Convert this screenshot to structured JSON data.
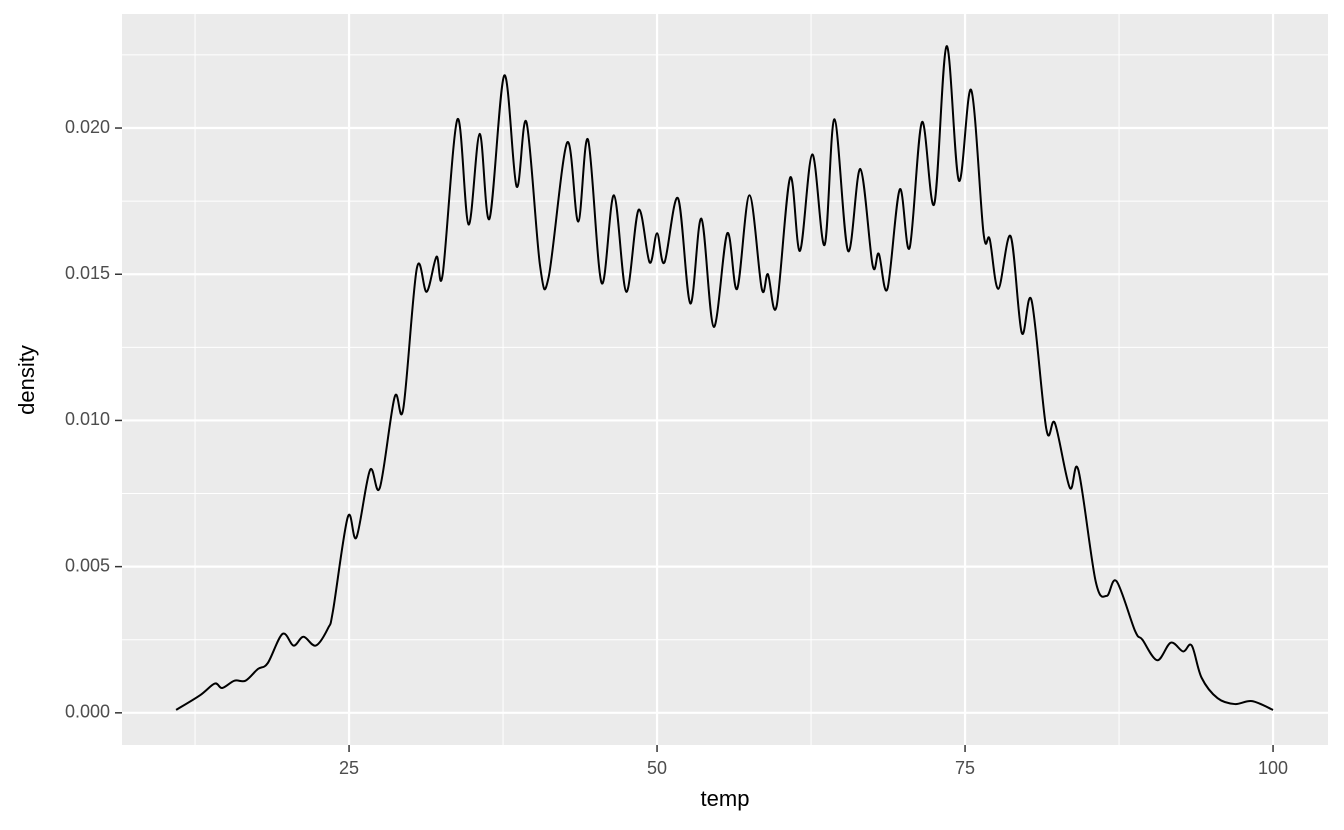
{
  "chart_data": {
    "type": "line",
    "x_label": "temp",
    "y_label": "density",
    "x": [
      10.96,
      12.9,
      14.1,
      14.7,
      15.7,
      16.6,
      17.6,
      18.4,
      19.6,
      20.5,
      21.3,
      22.3,
      23.3,
      23.7,
      24.9,
      25.6,
      26.7,
      27.5,
      28.7,
      29.4,
      30.5,
      31.3,
      32.1,
      32.6,
      33.8,
      34.7,
      35.6,
      36.4,
      37.6,
      38.6,
      39.4,
      40.5,
      41.2,
      42.7,
      43.6,
      44.4,
      45.5,
      46.5,
      47.5,
      48.5,
      49.4,
      50,
      50.6,
      51.7,
      52.7,
      53.6,
      54.6,
      55.7,
      56.5,
      57.5,
      58.5,
      59.0,
      59.7,
      60.8,
      61.6,
      62.6,
      63.6,
      64.4,
      65.5,
      66.5,
      67.5,
      68.0,
      68.7,
      69.7,
      70.5,
      71.5,
      72.5,
      73.5,
      74.5,
      75.5,
      76.5,
      77.0,
      77.7,
      78.7,
      79.6,
      80.4,
      81.6,
      82.3,
      83.5,
      84.2,
      85.6,
      86.5,
      87.3,
      88.8,
      89.4,
      90.6,
      91.7,
      92.7,
      93.4,
      94.2,
      95.5,
      96.9,
      98.3,
      100
    ],
    "series": [
      {
        "color": "#000000",
        "values": [
          0.0001,
          0.0006,
          0.001,
          0.00085,
          0.0011,
          0.0011,
          0.0015,
          0.0017,
          0.0027,
          0.0023,
          0.0026,
          0.0023,
          0.0029,
          0.0035,
          0.0067,
          0.006,
          0.0083,
          0.0077,
          0.0108,
          0.0104,
          0.0152,
          0.0144,
          0.0156,
          0.015,
          0.0203,
          0.0167,
          0.0198,
          0.0169,
          0.0218,
          0.018,
          0.0202,
          0.0153,
          0.0149,
          0.0195,
          0.0168,
          0.0196,
          0.0147,
          0.0177,
          0.0144,
          0.0172,
          0.0154,
          0.0164,
          0.0154,
          0.0176,
          0.014,
          0.0169,
          0.0132,
          0.0164,
          0.0145,
          0.0177,
          0.0145,
          0.015,
          0.0139,
          0.0183,
          0.0158,
          0.0191,
          0.016,
          0.0203,
          0.0158,
          0.0186,
          0.0153,
          0.0157,
          0.0145,
          0.0179,
          0.0159,
          0.0202,
          0.0174,
          0.0228,
          0.0182,
          0.0213,
          0.0164,
          0.0162,
          0.0145,
          0.0163,
          0.013,
          0.0141,
          0.0097,
          0.0099,
          0.0077,
          0.0083,
          0.0045,
          0.004,
          0.0045,
          0.0028,
          0.0025,
          0.0018,
          0.0024,
          0.0021,
          0.0023,
          0.0012,
          0.0005,
          0.0003,
          0.0004,
          0.0001
        ]
      }
    ],
    "xlim": [
      6.57,
      104.46
    ],
    "xticks": [
      25,
      50,
      75,
      100
    ],
    "x_minor_ticks": [
      12.5,
      37.5,
      62.5,
      87.5
    ],
    "ylim": [
      -0.0011,
      0.0239
    ],
    "yticks": [
      {
        "value": 0,
        "label": "0.000"
      },
      {
        "value": 0.005,
        "label": "0.005"
      },
      {
        "value": 0.01,
        "label": "0.010"
      },
      {
        "value": 0.015,
        "label": "0.015"
      },
      {
        "value": 0.02,
        "label": "0.020"
      }
    ],
    "y_minor_ticks": [
      0.0025,
      0.0075,
      0.0125,
      0.0175,
      0.0225
    ],
    "grid": true,
    "panel_color": "#ebebeb"
  }
}
